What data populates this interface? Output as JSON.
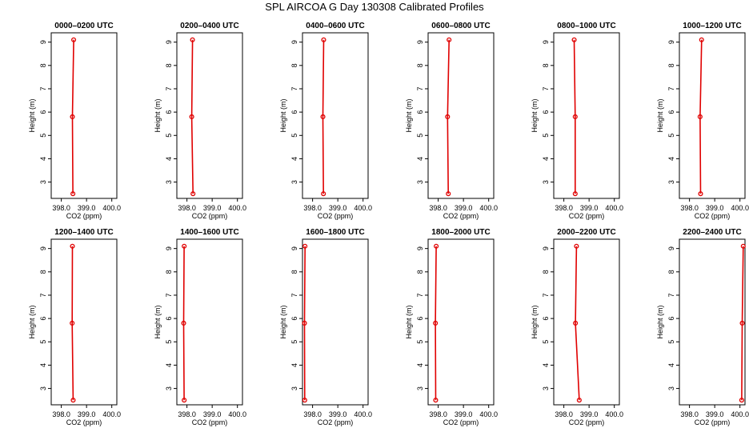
{
  "figure": {
    "title": "SPL AIRCOA G  Day 130308  Calibrated Profiles"
  },
  "styles": {
    "line_color": "#e00000",
    "marker_color": "#e00000",
    "axis_color": "#000000",
    "background": "#ffffff"
  },
  "chart_data": [
    {
      "type": "line",
      "title": "0000–0200 UTC",
      "xlabel": "CO2 (ppm)",
      "ylabel": "Height (m)",
      "xlim": [
        397.6,
        400.2
      ],
      "ylim": [
        2.3,
        9.4
      ],
      "xticks": [
        "398.0",
        "399.0",
        "400.0"
      ],
      "yticks": [
        "3",
        "4",
        "5",
        "6",
        "7",
        "8",
        "9"
      ],
      "series": [
        {
          "x": [
            398.46,
            398.44,
            398.49
          ],
          "y": [
            2.5,
            5.8,
            9.1
          ]
        }
      ]
    },
    {
      "type": "line",
      "title": "0200–0400 UTC",
      "xlabel": "CO2 (ppm)",
      "ylabel": "Height (m)",
      "xlim": [
        397.6,
        400.2
      ],
      "ylim": [
        2.3,
        9.4
      ],
      "xticks": [
        "398.0",
        "399.0",
        "400.0"
      ],
      "yticks": [
        "3",
        "4",
        "5",
        "6",
        "7",
        "8",
        "9"
      ],
      "series": [
        {
          "x": [
            398.24,
            398.19,
            398.22
          ],
          "y": [
            2.5,
            5.8,
            9.1
          ]
        }
      ]
    },
    {
      "type": "line",
      "title": "0400–0600 UTC",
      "xlabel": "CO2 (ppm)",
      "ylabel": "Height (m)",
      "xlim": [
        397.6,
        400.2
      ],
      "ylim": [
        2.3,
        9.4
      ],
      "xticks": [
        "398.0",
        "399.0",
        "400.0"
      ],
      "yticks": [
        "3",
        "4",
        "5",
        "6",
        "7",
        "8",
        "9"
      ],
      "series": [
        {
          "x": [
            398.43,
            398.41,
            398.44
          ],
          "y": [
            2.5,
            5.8,
            9.1
          ]
        }
      ]
    },
    {
      "type": "line",
      "title": "0600–0800 UTC",
      "xlabel": "CO2 (ppm)",
      "ylabel": "Height (m)",
      "xlim": [
        397.6,
        400.2
      ],
      "ylim": [
        2.3,
        9.4
      ],
      "xticks": [
        "398.0",
        "399.0",
        "400.0"
      ],
      "yticks": [
        "3",
        "4",
        "5",
        "6",
        "7",
        "8",
        "9"
      ],
      "series": [
        {
          "x": [
            398.4,
            398.37,
            398.43
          ],
          "y": [
            2.5,
            5.8,
            9.1
          ]
        }
      ]
    },
    {
      "type": "line",
      "title": "0800–1000 UTC",
      "xlabel": "CO2 (ppm)",
      "ylabel": "Height (m)",
      "xlim": [
        397.6,
        400.2
      ],
      "ylim": [
        2.3,
        9.4
      ],
      "xticks": [
        "398.0",
        "399.0",
        "400.0"
      ],
      "yticks": [
        "3",
        "4",
        "5",
        "6",
        "7",
        "8",
        "9"
      ],
      "series": [
        {
          "x": [
            398.45,
            398.45,
            398.41
          ],
          "y": [
            2.5,
            5.8,
            9.1
          ]
        }
      ]
    },
    {
      "type": "line",
      "title": "1000–1200 UTC",
      "xlabel": "CO2 (ppm)",
      "ylabel": "Height (m)",
      "xlim": [
        397.6,
        400.2
      ],
      "ylim": [
        2.3,
        9.4
      ],
      "xticks": [
        "398.0",
        "399.0",
        "400.0"
      ],
      "yticks": [
        "3",
        "4",
        "5",
        "6",
        "7",
        "8",
        "9"
      ],
      "series": [
        {
          "x": [
            398.44,
            398.42,
            398.48
          ],
          "y": [
            2.5,
            5.8,
            9.1
          ]
        }
      ]
    },
    {
      "type": "line",
      "title": "1200–1400 UTC",
      "xlabel": "CO2 (ppm)",
      "ylabel": "Height (m)",
      "xlim": [
        397.6,
        400.2
      ],
      "ylim": [
        2.3,
        9.4
      ],
      "xticks": [
        "398.0",
        "399.0",
        "400.0"
      ],
      "yticks": [
        "3",
        "4",
        "5",
        "6",
        "7",
        "8",
        "9"
      ],
      "series": [
        {
          "x": [
            398.47,
            398.43,
            398.44
          ],
          "y": [
            2.5,
            5.8,
            9.1
          ]
        }
      ]
    },
    {
      "type": "line",
      "title": "1400–1600 UTC",
      "xlabel": "CO2 (ppm)",
      "ylabel": "Height (m)",
      "xlim": [
        397.6,
        400.2
      ],
      "ylim": [
        2.3,
        9.4
      ],
      "xticks": [
        "398.0",
        "399.0",
        "400.0"
      ],
      "yticks": [
        "3",
        "4",
        "5",
        "6",
        "7",
        "8",
        "9"
      ],
      "series": [
        {
          "x": [
            397.89,
            397.87,
            397.89
          ],
          "y": [
            2.5,
            5.8,
            9.1
          ]
        }
      ]
    },
    {
      "type": "line",
      "title": "1600–1800 UTC",
      "xlabel": "CO2 (ppm)",
      "ylabel": "Height (m)",
      "xlim": [
        397.6,
        400.2
      ],
      "ylim": [
        2.3,
        9.4
      ],
      "xticks": [
        "398.0",
        "399.0",
        "400.0"
      ],
      "yticks": [
        "3",
        "4",
        "5",
        "6",
        "7",
        "8",
        "9"
      ],
      "series": [
        {
          "x": [
            397.69,
            397.68,
            397.7
          ],
          "y": [
            2.5,
            5.8,
            9.1
          ]
        }
      ]
    },
    {
      "type": "line",
      "title": "1800–2000 UTC",
      "xlabel": "CO2 (ppm)",
      "ylabel": "Height (m)",
      "xlim": [
        397.6,
        400.2
      ],
      "ylim": [
        2.3,
        9.4
      ],
      "xticks": [
        "398.0",
        "399.0",
        "400.0"
      ],
      "yticks": [
        "3",
        "4",
        "5",
        "6",
        "7",
        "8",
        "9"
      ],
      "series": [
        {
          "x": [
            397.9,
            397.89,
            397.92
          ],
          "y": [
            2.5,
            5.8,
            9.1
          ]
        }
      ]
    },
    {
      "type": "line",
      "title": "2000–2200 UTC",
      "xlabel": "CO2 (ppm)",
      "ylabel": "Height (m)",
      "xlim": [
        397.6,
        400.2
      ],
      "ylim": [
        2.3,
        9.4
      ],
      "xticks": [
        "398.0",
        "399.0",
        "400.0"
      ],
      "yticks": [
        "3",
        "4",
        "5",
        "6",
        "7",
        "8",
        "9"
      ],
      "series": [
        {
          "x": [
            398.61,
            398.46,
            398.5
          ],
          "y": [
            2.5,
            5.8,
            9.1
          ]
        }
      ]
    },
    {
      "type": "line",
      "title": "2200–2400 UTC",
      "xlabel": "CO2 (ppm)",
      "ylabel": "Height (m)",
      "xlim": [
        397.6,
        400.2
      ],
      "ylim": [
        2.3,
        9.4
      ],
      "xticks": [
        "398.0",
        "399.0",
        "400.0"
      ],
      "yticks": [
        "3",
        "4",
        "5",
        "6",
        "7",
        "8",
        "9"
      ],
      "series": [
        {
          "x": [
            400.07,
            400.09,
            400.13
          ],
          "y": [
            2.5,
            5.8,
            9.1
          ]
        }
      ]
    }
  ]
}
